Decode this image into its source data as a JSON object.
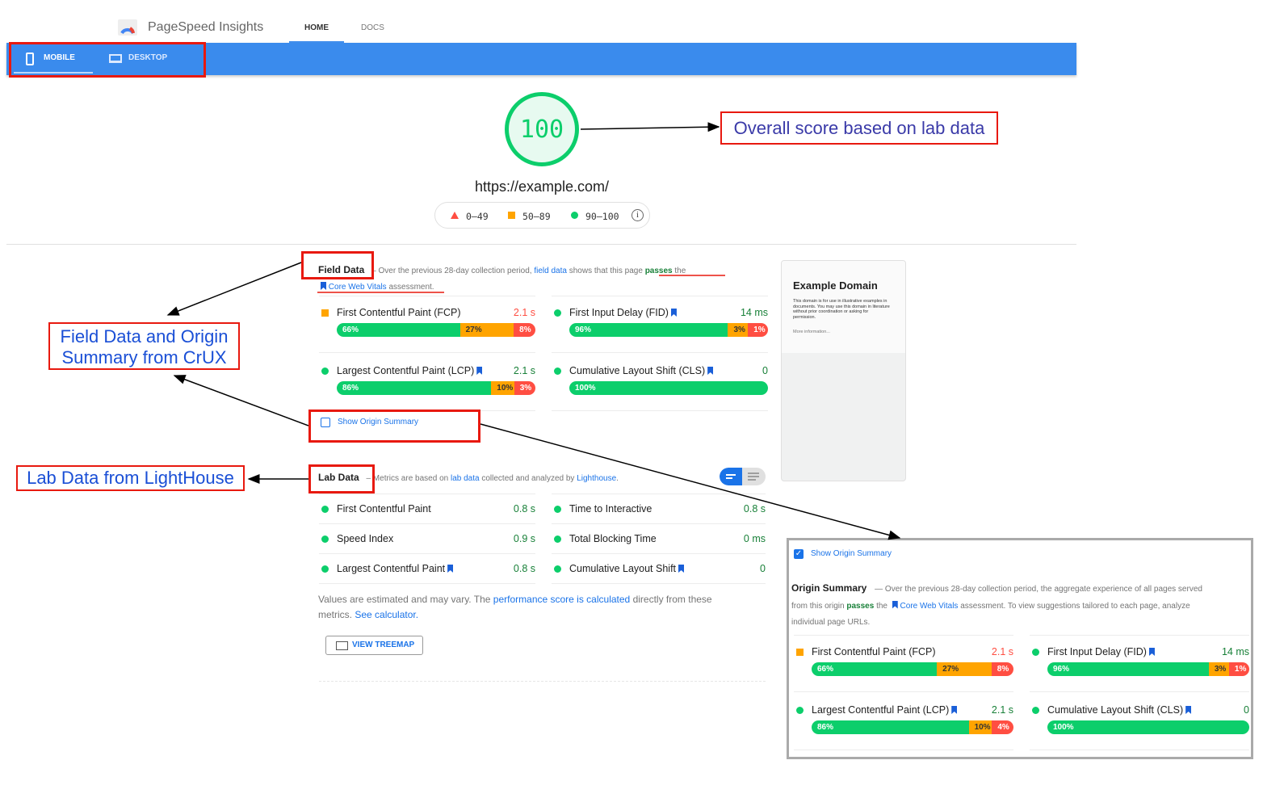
{
  "header": {
    "app_title": "PageSpeed Insights",
    "tabs": [
      {
        "label": "HOME",
        "active": true
      },
      {
        "label": "DOCS",
        "active": false
      }
    ]
  },
  "device_bar": {
    "mobile": "MOBILE",
    "desktop": "DESKTOP",
    "color": "#3a8bed"
  },
  "score": {
    "value": "100",
    "url": "https://example.com/",
    "legend": [
      "0–49",
      "50–89",
      "90–100"
    ]
  },
  "colors": {
    "good": "#0cce6b",
    "average": "#ffa400",
    "poor": "#ff4e42",
    "link": "#1a73e8"
  },
  "field": {
    "title": "Field Data",
    "intro": "– Over the previous 28-day collection period,",
    "link": "field data",
    "mid": "shows that this page",
    "passes": "passes",
    "the": "the",
    "cwv": "Core Web Vitals",
    "end": "assessment.",
    "metrics": [
      {
        "name": "First Contentful Paint (FCP)",
        "value": "2.1 s",
        "status": "average",
        "bookmark": false,
        "dist": [
          66,
          27,
          8
        ]
      },
      {
        "name": "First Input Delay (FID)",
        "value": "14 ms",
        "status": "good",
        "bookmark": true,
        "dist": [
          96,
          3,
          1
        ]
      },
      {
        "name": "Largest Contentful Paint (LCP)",
        "value": "2.1 s",
        "status": "good",
        "bookmark": true,
        "dist": [
          86,
          10,
          3
        ]
      },
      {
        "name": "Cumulative Layout Shift (CLS)",
        "value": "0",
        "status": "good",
        "bookmark": true,
        "dist": [
          100,
          0,
          0
        ]
      }
    ],
    "show_origin": "Show Origin Summary"
  },
  "lab": {
    "title": "Lab Data",
    "intro": "– Metrics are based on",
    "link": "lab data",
    "mid": "collected and analyzed by",
    "lighthouse": "Lighthouse",
    "metrics": [
      {
        "name": "First Contentful Paint",
        "value": "0.8 s",
        "bookmark": false
      },
      {
        "name": "Time to Interactive",
        "value": "0.8 s",
        "bookmark": false
      },
      {
        "name": "Speed Index",
        "value": "0.9 s",
        "bookmark": false
      },
      {
        "name": "Total Blocking Time",
        "value": "0 ms",
        "bookmark": false
      },
      {
        "name": "Largest Contentful Paint",
        "value": "0.8 s",
        "bookmark": true
      },
      {
        "name": "Cumulative Layout Shift",
        "value": "0",
        "bookmark": true
      }
    ],
    "note_a": "Values are estimated and may vary. The",
    "note_link": "performance score is calculated",
    "note_b": "directly from these metrics.",
    "note_calc": "See calculator.",
    "treemap": "VIEW TREEMAP"
  },
  "screenshot": {
    "title": "Example Domain",
    "body": "This domain is for use in illustrative examples in documents. You may use this domain in literature without prior coordination or asking for permission.",
    "more": "More information..."
  },
  "origin": {
    "checkbox": "Show Origin Summary",
    "title": "Origin Summary",
    "intro": "— Over the previous 28-day collection period, the aggregate experience of all pages served from this origin",
    "passes": "passes",
    "the": "the",
    "cwv": "Core Web Vitals",
    "end": "assessment. To view suggestions tailored to each page, analyze individual page URLs.",
    "metrics": [
      {
        "name": "First Contentful Paint (FCP)",
        "value": "2.1 s",
        "status": "average",
        "bookmark": false,
        "dist": [
          66,
          27,
          8
        ]
      },
      {
        "name": "First Input Delay (FID)",
        "value": "14 ms",
        "status": "good",
        "bookmark": true,
        "dist": [
          96,
          3,
          1
        ]
      },
      {
        "name": "Largest Contentful Paint (LCP)",
        "value": "2.1 s",
        "status": "good",
        "bookmark": true,
        "dist": [
          86,
          10,
          4
        ]
      },
      {
        "name": "Cumulative Layout Shift (CLS)",
        "value": "0",
        "status": "good",
        "bookmark": true,
        "dist": [
          100,
          0,
          0
        ]
      }
    ]
  },
  "annotations": {
    "score": "Overall score based on lab data",
    "field": "Field Data and Origin Summary from CrUX",
    "lab": "Lab Data from LightHouse"
  }
}
